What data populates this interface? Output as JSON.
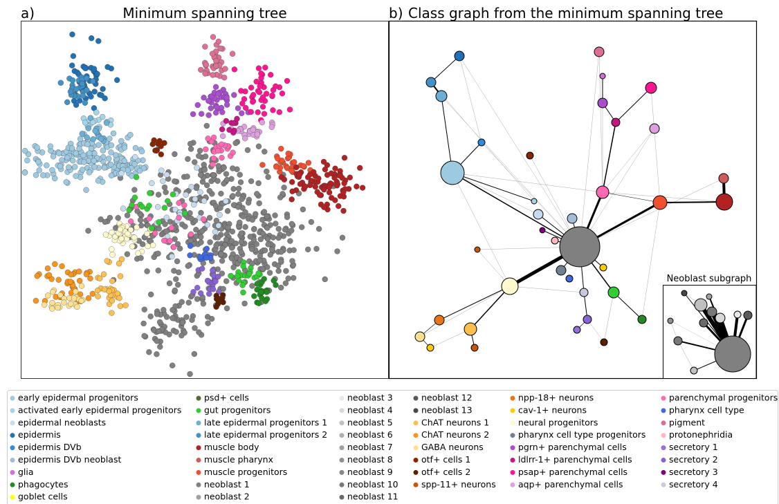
{
  "panels": [
    {
      "label": "a)",
      "title": "Minimum spanning tree"
    },
    {
      "label": "b)",
      "title": "Class graph from the minimum spanning tree",
      "inset_title": "Neoblast subgraph"
    }
  ],
  "legend": [
    {
      "label": "early epidermal progenitors",
      "color": "#9ecae1"
    },
    {
      "label": "activated early epidermal progenitors",
      "color": "#a6d5e8"
    },
    {
      "label": "epidermal neoblasts",
      "color": "#c6dbef"
    },
    {
      "label": "epidermis",
      "color": "#2171b5"
    },
    {
      "label": "epidermis DVb",
      "color": "#2b8ce0"
    },
    {
      "label": "epidermis DVb neoblast",
      "color": "#a5bcd8"
    },
    {
      "label": "glia",
      "color": "#d56fd5"
    },
    {
      "label": "phagocytes",
      "color": "#228b22"
    },
    {
      "label": "goblet cells",
      "color": "#ffff00"
    },
    {
      "label": "psd+ cells",
      "color": "#556b2f"
    },
    {
      "label": "gut progenitors",
      "color": "#32cd32"
    },
    {
      "label": "late epidermal progenitors 1",
      "color": "#6baed6"
    },
    {
      "label": "late epidermal progenitors 2",
      "color": "#4292c6"
    },
    {
      "label": "muscle body",
      "color": "#b22222"
    },
    {
      "label": "muscle pharynx",
      "color": "#cd5c5c"
    },
    {
      "label": "muscle progenitors",
      "color": "#f05030"
    },
    {
      "label": "neoblast 1",
      "color": "#808080"
    },
    {
      "label": "neoblast 2",
      "color": "#a0a0a0"
    },
    {
      "label": "neoblast 3",
      "color": "#e8e8e8"
    },
    {
      "label": "neoblast 4",
      "color": "#d8d8d8"
    },
    {
      "label": "neoblast 5",
      "color": "#c0c0c0"
    },
    {
      "label": "neoblast 6",
      "color": "#b0b0b0"
    },
    {
      "label": "neoblast 7",
      "color": "#a0a0a0"
    },
    {
      "label": "neoblast 8",
      "color": "#909090"
    },
    {
      "label": "neoblast 9",
      "color": "#888888"
    },
    {
      "label": "neoblast 10",
      "color": "#787878"
    },
    {
      "label": "neoblast 11",
      "color": "#6a6a6a"
    },
    {
      "label": "neoblast 12",
      "color": "#5a5a5a"
    },
    {
      "label": "neoblast 13",
      "color": "#484848"
    },
    {
      "label": "ChAT neurons 1",
      "color": "#fdbf4f"
    },
    {
      "label": "ChAT neurons 2",
      "color": "#f7941d"
    },
    {
      "label": "GABA neurons",
      "color": "#fde191"
    },
    {
      "label": "otf+ cells 1",
      "color": "#8b2500"
    },
    {
      "label": "otf+ cells 2",
      "color": "#5c2000"
    },
    {
      "label": "spp-11+ neurons",
      "color": "#cc5500"
    },
    {
      "label": "npp-18+ neurons",
      "color": "#e8751a"
    },
    {
      "label": "cav-1+ neurons",
      "color": "#ffcc00"
    },
    {
      "label": "neural progenitors",
      "color": "#fffacd"
    },
    {
      "label": "pharynx cell type progenitors",
      "color": "#708090"
    },
    {
      "label": "pgrn+ parenchymal cells",
      "color": "#a94fcc"
    },
    {
      "label": "ldlrr-1+ parenchymal cells",
      "color": "#c71585"
    },
    {
      "label": "psap+ parenchymal cells",
      "color": "#ff1493"
    },
    {
      "label": "aqp+ parenchymal cells",
      "color": "#dda0dd"
    },
    {
      "label": "parenchymal progenitors",
      "color": "#ff69b4"
    },
    {
      "label": "pharynx cell type",
      "color": "#4169e1"
    },
    {
      "label": "pigment",
      "color": "#db7093"
    },
    {
      "label": "protonephridia",
      "color": "#ffb6c1"
    },
    {
      "label": "secretory 1",
      "color": "#9370db"
    },
    {
      "label": "secretory 2",
      "color": "#8a63d2"
    },
    {
      "label": "secretory 3",
      "color": "#800080"
    },
    {
      "label": "secretory 4",
      "color": "#c8c8e0"
    }
  ]
}
